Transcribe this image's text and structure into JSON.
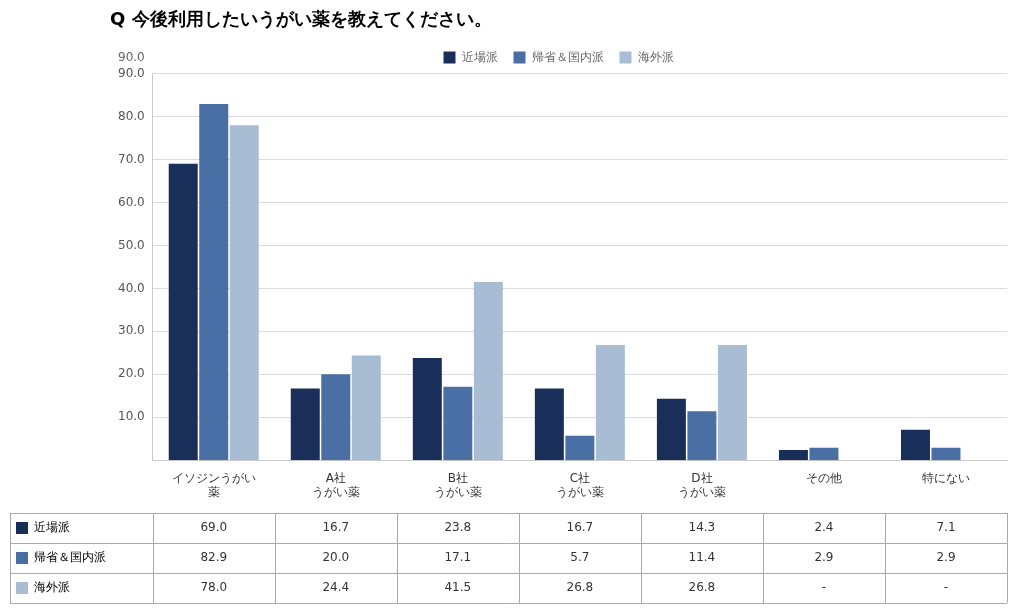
{
  "chart_data": {
    "type": "bar",
    "title": "Q 今後利用したいうがい薬を教えてください。",
    "categories": [
      "イソジンうがい\n薬",
      "A社\nうがい薬",
      "B社\nうがい薬",
      "C社\nうがい薬",
      "D社\nうがい薬",
      "その他",
      "特にない"
    ],
    "series": [
      {
        "name": "近場派",
        "color": "#1a2e5a",
        "values": [
          69.0,
          16.7,
          23.8,
          16.7,
          14.3,
          2.4,
          7.1
        ],
        "value_labels": [
          "69.0",
          "16.7",
          "23.8",
          "16.7",
          "14.3",
          "2.4",
          "7.1"
        ]
      },
      {
        "name": "帰省＆国内派",
        "color": "#4a6fa5",
        "values": [
          82.9,
          20.0,
          17.1,
          5.7,
          11.4,
          2.9,
          2.9
        ],
        "value_labels": [
          "82.9",
          "20.0",
          "17.1",
          "5.7",
          "11.4",
          "2.9",
          "2.9"
        ]
      },
      {
        "name": "海外派",
        "color": "#a8bcd4",
        "values": [
          78.0,
          24.4,
          41.5,
          26.8,
          26.8,
          0,
          0
        ],
        "value_labels": [
          "78.0",
          "24.4",
          "41.5",
          "26.8",
          "26.8",
          "-",
          "-"
        ]
      }
    ],
    "ylim": [
      0,
      90
    ],
    "yticks": [
      {
        "value": 10,
        "label": "10.0"
      },
      {
        "value": 20,
        "label": "20.0"
      },
      {
        "value": 30,
        "label": "30.0"
      },
      {
        "value": 40,
        "label": "40.0"
      },
      {
        "value": 50,
        "label": "50.0"
      },
      {
        "value": 60,
        "label": "60.0"
      },
      {
        "value": 70,
        "label": "70.0"
      },
      {
        "value": 80,
        "label": "80.0"
      },
      {
        "value": 90,
        "label": "90.0"
      }
    ],
    "grid": true,
    "legend": "top",
    "annotations": [
      {
        "text": "90.0"
      }
    ]
  }
}
